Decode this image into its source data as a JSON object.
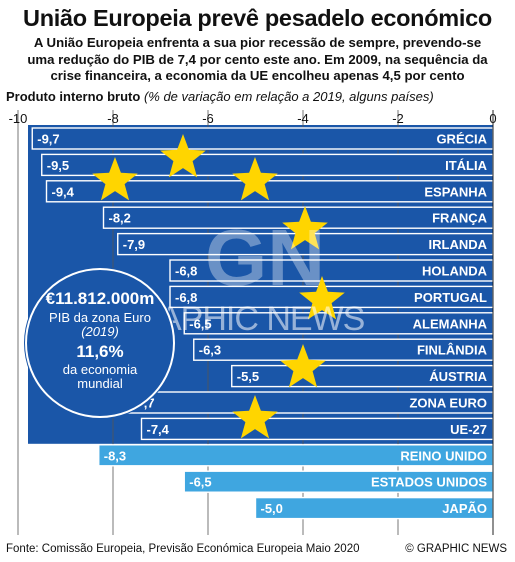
{
  "header": {
    "title": "União Europeia prevê pesadelo económico",
    "subtitle_lines": [
      "A União Europeia enfrenta a sua pior recessão de sempre, prevendo-se",
      "uma redução do PIB de 7,4 por cento este ano. Em 2009, na sequência da",
      "crise financeira, a economia da UE encolheu apenas 4,5 por cento"
    ]
  },
  "chart_data": {
    "type": "bar",
    "orientation": "horizontal",
    "title": "Produto interno bruto",
    "subtitle": "(% de variação em relação a 2019, alguns países)",
    "xlim": [
      -10,
      0
    ],
    "x_ticks": [
      "-10",
      "-8",
      "-6",
      "-4",
      "-2",
      "0"
    ],
    "grid": true,
    "categories": [
      "GRÉCIA",
      "ITÁLIA",
      "ESPANHA",
      "FRANÇA",
      "IRLANDA",
      "HOLANDA",
      "PORTUGAL",
      "ALEMANHA",
      "FINLÂNDIA",
      "ÁUSTRIA",
      "ZONA EURO",
      "UE-27",
      "REINO UNIDO",
      "ESTADOS UNIDOS",
      "JAPÃO"
    ],
    "values": [
      -9.7,
      -9.5,
      -9.4,
      -8.2,
      -7.9,
      -6.8,
      -6.8,
      -6.5,
      -6.3,
      -5.5,
      -7.7,
      -7.4,
      -8.3,
      -6.5,
      -5.0
    ],
    "value_labels": [
      "-9,7",
      "-9,5",
      "-9,4",
      "-8,2",
      "-7,9",
      "-6,8",
      "-6,8",
      "-6,5",
      "-6,3",
      "-5,5",
      "-7,7",
      "-7,4",
      "-8,3",
      "-6,5",
      "-5,0"
    ],
    "groups": [
      "eu",
      "eu",
      "eu",
      "eu",
      "eu",
      "eu",
      "eu",
      "eu",
      "eu",
      "eu",
      "eu",
      "eu",
      "other",
      "other",
      "other"
    ],
    "colors": {
      "eu_bar": "#1a56a8",
      "other_bar": "#3fa6e0",
      "panel": "#1a56a8",
      "star": "#ffd500",
      "grid": "#555555"
    }
  },
  "callout": {
    "amount": "€11.812.000m",
    "line1": "PIB da zona Euro",
    "line2": "(2019)",
    "percent": "11,6%",
    "line3": "da economia",
    "line4": "mundial"
  },
  "footer": {
    "source": "Fonte: Comissão Europeia, Previsão Económica Europeia Maio 2020",
    "credit": "© GRAPHIC NEWS"
  },
  "watermark": "GRAPHIC NEWS"
}
